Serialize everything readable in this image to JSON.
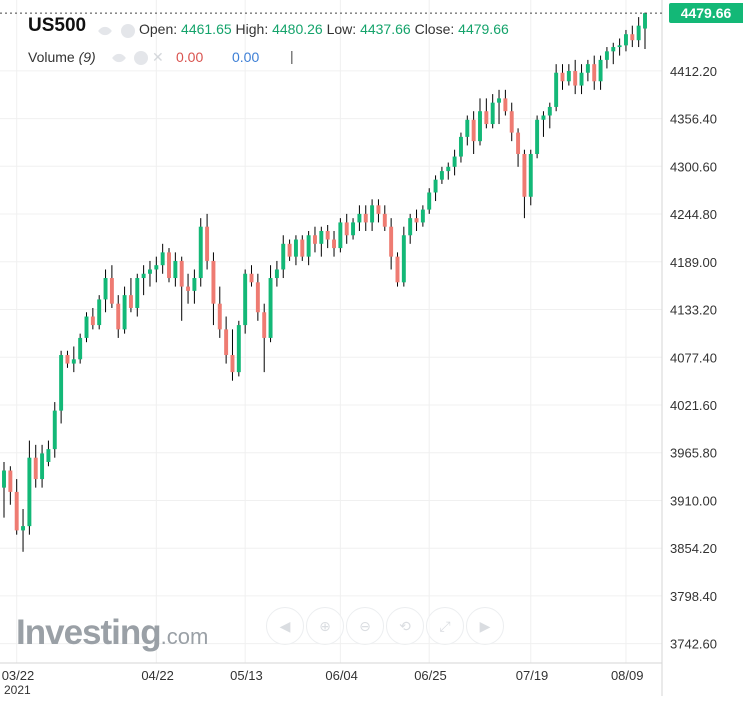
{
  "chart_data": {
    "type": "candlestick",
    "symbol": "US500",
    "ohlc_header": {
      "open_label": "Open:",
      "open": "4461.65",
      "high_label": "High:",
      "high": "4480.26",
      "low_label": "Low:",
      "low": "4437.66",
      "close_label": "Close:",
      "close": "4479.66"
    },
    "volume_indicator": {
      "label": "Volume",
      "period": "(9)",
      "value1": "0.00",
      "value2": "0.00"
    },
    "last_price": "4479.66",
    "y_ticks": [
      "3742.60",
      "3798.40",
      "3854.20",
      "3910.00",
      "3965.80",
      "4021.60",
      "4077.40",
      "4133.20",
      "4189.00",
      "4244.80",
      "4300.60",
      "4356.40",
      "4412.20"
    ],
    "y_range": [
      3720,
      4495
    ],
    "x_ticks": [
      {
        "label": "03/22",
        "index": 2
      },
      {
        "label": "04/22",
        "index": 24
      },
      {
        "label": "05/13",
        "index": 38
      },
      {
        "label": "06/04",
        "index": 53
      },
      {
        "label": "06/25",
        "index": 67
      },
      {
        "label": "07/19",
        "index": 83
      },
      {
        "label": "08/09",
        "index": 98
      }
    ],
    "x_year_label": "2021",
    "grid": true,
    "up_color": "#13b877",
    "down_color": "#ee7b72",
    "wick_color": "#000000",
    "candles": [
      [
        3925,
        3955,
        3890,
        3945
      ],
      [
        3945,
        3950,
        3905,
        3920
      ],
      [
        3920,
        3935,
        3870,
        3875
      ],
      [
        3875,
        3900,
        3850,
        3880
      ],
      [
        3880,
        3980,
        3870,
        3960
      ],
      [
        3960,
        3975,
        3925,
        3935
      ],
      [
        3935,
        3975,
        3925,
        3965
      ],
      [
        3955,
        3980,
        3950,
        3970
      ],
      [
        3970,
        4025,
        3960,
        4015
      ],
      [
        4015,
        4085,
        4000,
        4080
      ],
      [
        4080,
        4085,
        4065,
        4070
      ],
      [
        4070,
        4090,
        4060,
        4075
      ],
      [
        4075,
        4105,
        4070,
        4100
      ],
      [
        4100,
        4130,
        4095,
        4125
      ],
      [
        4125,
        4135,
        4110,
        4115
      ],
      [
        4115,
        4150,
        4110,
        4145
      ],
      [
        4145,
        4180,
        4130,
        4170
      ],
      [
        4170,
        4185,
        4135,
        4140
      ],
      [
        4140,
        4150,
        4100,
        4110
      ],
      [
        4110,
        4160,
        4105,
        4150
      ],
      [
        4150,
        4170,
        4130,
        4135
      ],
      [
        4135,
        4175,
        4125,
        4170
      ],
      [
        4170,
        4185,
        4150,
        4175
      ],
      [
        4175,
        4190,
        4160,
        4180
      ],
      [
        4180,
        4195,
        4165,
        4185
      ],
      [
        4185,
        4210,
        4175,
        4200
      ],
      [
        4200,
        4205,
        4165,
        4170
      ],
      [
        4170,
        4200,
        4160,
        4190
      ],
      [
        4190,
        4195,
        4120,
        4160
      ],
      [
        4160,
        4175,
        4140,
        4155
      ],
      [
        4155,
        4180,
        4140,
        4170
      ],
      [
        4170,
        4240,
        4160,
        4230
      ],
      [
        4230,
        4245,
        4180,
        4190
      ],
      [
        4190,
        4200,
        4115,
        4140
      ],
      [
        4140,
        4160,
        4100,
        4110
      ],
      [
        4110,
        4125,
        4070,
        4080
      ],
      [
        4080,
        4110,
        4050,
        4060
      ],
      [
        4060,
        4120,
        4055,
        4115
      ],
      [
        4115,
        4180,
        4105,
        4175
      ],
      [
        4175,
        4185,
        4160,
        4165
      ],
      [
        4165,
        4175,
        4120,
        4130
      ],
      [
        4130,
        4140,
        4060,
        4100
      ],
      [
        4100,
        4185,
        4095,
        4170
      ],
      [
        4170,
        4190,
        4160,
        4180
      ],
      [
        4180,
        4220,
        4170,
        4210
      ],
      [
        4210,
        4215,
        4190,
        4195
      ],
      [
        4195,
        4220,
        4185,
        4215
      ],
      [
        4215,
        4220,
        4190,
        4195
      ],
      [
        4195,
        4225,
        4185,
        4220
      ],
      [
        4220,
        4230,
        4200,
        4210
      ],
      [
        4210,
        4230,
        4195,
        4225
      ],
      [
        4225,
        4232,
        4205,
        4215
      ],
      [
        4215,
        4225,
        4195,
        4205
      ],
      [
        4205,
        4240,
        4200,
        4235
      ],
      [
        4235,
        4245,
        4210,
        4220
      ],
      [
        4220,
        4240,
        4215,
        4235
      ],
      [
        4235,
        4255,
        4225,
        4245
      ],
      [
        4245,
        4255,
        4225,
        4235
      ],
      [
        4235,
        4262,
        4225,
        4255
      ],
      [
        4255,
        4262,
        4235,
        4245
      ],
      [
        4245,
        4255,
        4225,
        4230
      ],
      [
        4230,
        4240,
        4180,
        4195
      ],
      [
        4195,
        4200,
        4160,
        4165
      ],
      [
        4165,
        4230,
        4160,
        4220
      ],
      [
        4220,
        4245,
        4210,
        4240
      ],
      [
        4240,
        4250,
        4225,
        4235
      ],
      [
        4235,
        4255,
        4230,
        4250
      ],
      [
        4250,
        4275,
        4245,
        4270
      ],
      [
        4270,
        4290,
        4260,
        4285
      ],
      [
        4285,
        4300,
        4280,
        4295
      ],
      [
        4295,
        4305,
        4285,
        4300
      ],
      [
        4300,
        4320,
        4290,
        4312
      ],
      [
        4312,
        4340,
        4305,
        4335
      ],
      [
        4335,
        4360,
        4325,
        4355
      ],
      [
        4355,
        4365,
        4315,
        4330
      ],
      [
        4330,
        4380,
        4325,
        4365
      ],
      [
        4365,
        4380,
        4345,
        4350
      ],
      [
        4350,
        4385,
        4345,
        4375
      ],
      [
        4375,
        4390,
        4350,
        4380
      ],
      [
        4380,
        4390,
        4360,
        4365
      ],
      [
        4365,
        4375,
        4330,
        4340
      ],
      [
        4340,
        4345,
        4300,
        4315
      ],
      [
        4315,
        4320,
        4240,
        4265
      ],
      [
        4265,
        4320,
        4255,
        4315
      ],
      [
        4315,
        4360,
        4310,
        4355
      ],
      [
        4355,
        4365,
        4335,
        4360
      ],
      [
        4360,
        4375,
        4345,
        4370
      ],
      [
        4370,
        4420,
        4365,
        4410
      ],
      [
        4410,
        4420,
        4390,
        4400
      ],
      [
        4400,
        4420,
        4395,
        4412
      ],
      [
        4412,
        4425,
        4385,
        4395
      ],
      [
        4395,
        4420,
        4385,
        4410
      ],
      [
        4410,
        4425,
        4400,
        4420
      ],
      [
        4420,
        4430,
        4390,
        4400
      ],
      [
        4400,
        4430,
        4390,
        4425
      ],
      [
        4425,
        4440,
        4415,
        4435
      ],
      [
        4435,
        4445,
        4420,
        4440
      ],
      [
        4440,
        4450,
        4430,
        4442
      ],
      [
        4442,
        4460,
        4435,
        4455
      ],
      [
        4455,
        4465,
        4440,
        4448
      ],
      [
        4448,
        4475,
        4440,
        4465
      ],
      [
        4461.65,
        4480.26,
        4437.66,
        4479.66
      ]
    ]
  },
  "toolbar": {
    "icons": [
      "arrow-left-icon",
      "zoom-in-icon",
      "zoom-out-icon",
      "zoom-reset-icon",
      "zoom-fit-icon",
      "arrow-right-icon"
    ]
  },
  "branding": {
    "logo_main": "Investing",
    "logo_suffix": ".com"
  }
}
